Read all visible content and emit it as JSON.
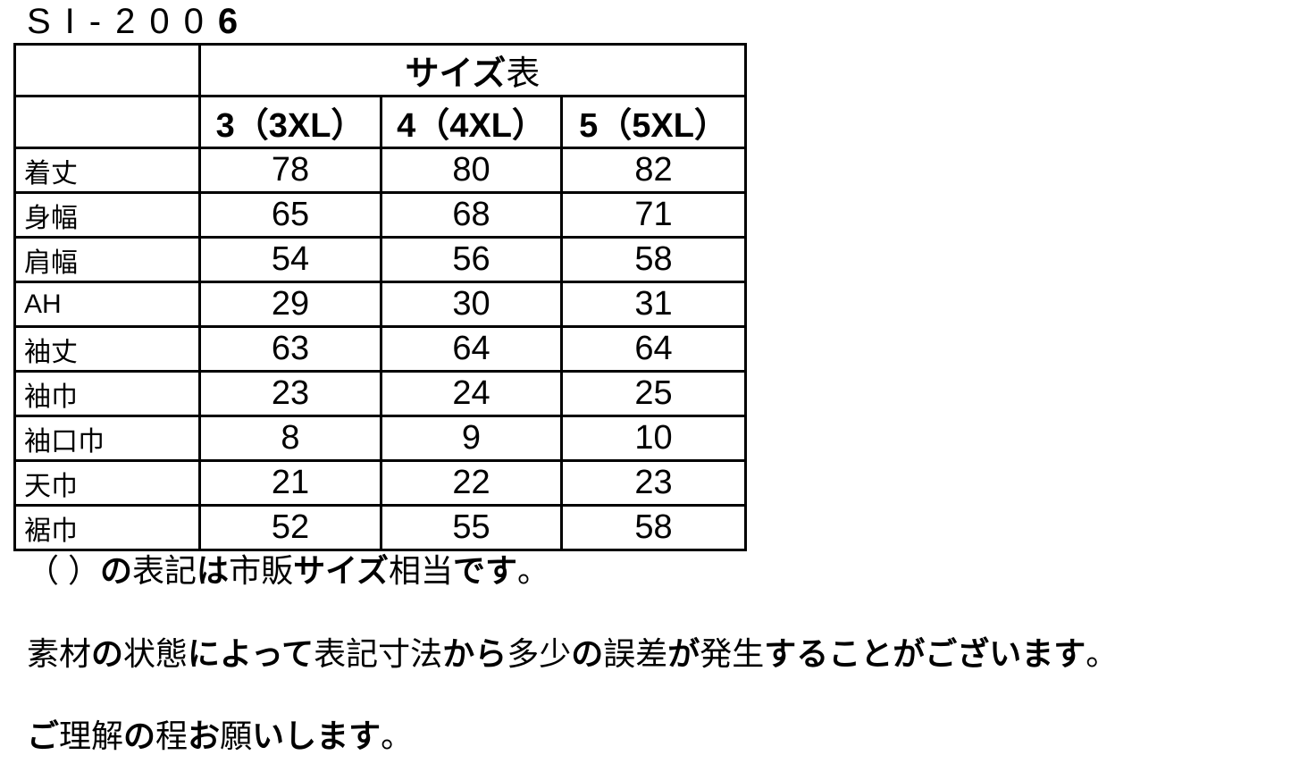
{
  "page": {
    "title": "SI-2006",
    "title_segments": [
      {
        "t": "SI-200",
        "b": false
      },
      {
        "t": "6",
        "b": true
      }
    ]
  },
  "table": {
    "caption": "サイズ表",
    "caption_segments": [
      {
        "t": "サイズ",
        "b": true
      },
      {
        "t": "表",
        "b": false
      }
    ],
    "size_headers": [
      "3（3XL）",
      "4（4XL）",
      "5（5XL）"
    ],
    "rows": [
      {
        "label": "着丈",
        "values": [
          "78",
          "80",
          "82"
        ]
      },
      {
        "label": "身幅",
        "values": [
          "65",
          "68",
          "71"
        ]
      },
      {
        "label": "肩幅",
        "values": [
          "54",
          "56",
          "58"
        ]
      },
      {
        "label": "AH",
        "values": [
          "29",
          "30",
          "31"
        ]
      },
      {
        "label": "袖丈",
        "values": [
          "63",
          "64",
          "64"
        ]
      },
      {
        "label": "袖巾",
        "values": [
          "23",
          "24",
          "25"
        ]
      },
      {
        "label": "袖口巾",
        "values": [
          "8",
          "9",
          "10"
        ]
      },
      {
        "label": "天巾",
        "values": [
          "21",
          "22",
          "23"
        ]
      },
      {
        "label": "裾巾",
        "values": [
          "52",
          "55",
          "58"
        ]
      }
    ]
  },
  "notes": {
    "note1": {
      "text": "（ ）の表記は市販サイズ相当です。",
      "segments": [
        {
          "t": "（ ）",
          "b": false
        },
        {
          "t": "の",
          "b": true
        },
        {
          "t": "表記",
          "b": false
        },
        {
          "t": "は",
          "b": true
        },
        {
          "t": "市販",
          "b": false
        },
        {
          "t": "サイズ",
          "b": true
        },
        {
          "t": "相当",
          "b": false
        },
        {
          "t": "です",
          "b": true
        },
        {
          "t": "。",
          "b": false
        }
      ]
    },
    "note2": {
      "text": "素材の状態によって表記寸法から多少の誤差が発生することがございます。",
      "segments": [
        {
          "t": "素材",
          "b": false
        },
        {
          "t": "の",
          "b": true
        },
        {
          "t": "状態",
          "b": false
        },
        {
          "t": "によって",
          "b": true
        },
        {
          "t": "表記寸法",
          "b": false
        },
        {
          "t": "から",
          "b": true
        },
        {
          "t": "多少",
          "b": false
        },
        {
          "t": "の",
          "b": true
        },
        {
          "t": "誤差",
          "b": false
        },
        {
          "t": "が",
          "b": true
        },
        {
          "t": "発生",
          "b": false
        },
        {
          "t": "することがございます",
          "b": true
        },
        {
          "t": "。",
          "b": false
        }
      ]
    },
    "note3": {
      "text": "ご理解の程お願いします。",
      "segments": [
        {
          "t": "ご",
          "b": true
        },
        {
          "t": "理解",
          "b": false
        },
        {
          "t": "の",
          "b": true
        },
        {
          "t": "程",
          "b": false
        },
        {
          "t": "お",
          "b": true
        },
        {
          "t": "願",
          "b": false
        },
        {
          "t": "いします",
          "b": true
        },
        {
          "t": "。",
          "b": false
        }
      ]
    }
  }
}
